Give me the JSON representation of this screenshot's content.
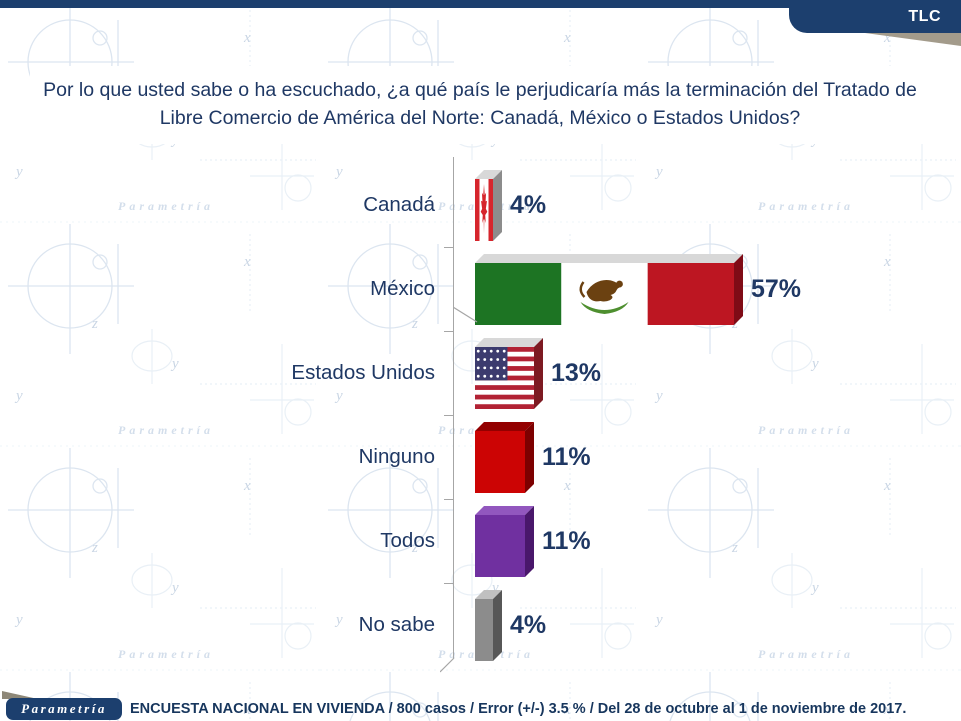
{
  "header": {
    "tab_label": "TLC"
  },
  "title": {
    "text": "Por lo que usted sabe o ha escuchado, ¿a qué país le perjudicaría más la terminación del Tratado de Libre Comercio de América del Norte: Canadá, México o Estados Unidos?"
  },
  "chart_data": {
    "type": "bar",
    "orientation": "horizontal",
    "title": "Por lo que usted sabe o ha escuchado, ¿a qué país le perjudicaría más la terminación del Tratado de Libre Comercio de América del Norte: Canadá, México o Estados Unidos?",
    "categories": [
      "Canadá",
      "México",
      "Estados Unidos",
      "Ninguno",
      "Todos",
      "No sabe"
    ],
    "values": [
      4,
      57,
      13,
      11,
      11,
      4
    ],
    "value_labels": [
      "4%",
      "57%",
      "13%",
      "11%",
      "11%",
      "4%"
    ],
    "bar_styles": [
      "canada-flag",
      "mexico-flag",
      "usa-flag",
      "solid-red",
      "solid-purple",
      "solid-gray"
    ],
    "xlim": [
      0,
      60
    ],
    "unit": "%",
    "legend": "none",
    "grid": "off",
    "style": "3d-horizontal-bars-with-flag-textures"
  },
  "footer": {
    "logo": "Parametría",
    "text": "ENCUESTA NACIONAL EN VIVIENDA / 800 casos / Error (+/-) 3.5 % / Del 28 de octubre al 1 de noviembre de 2017."
  },
  "watermark": {
    "text": "Parametría"
  },
  "colors": {
    "navy_band": "#1c3f6e",
    "navy_text": "#1f3864",
    "footer_navy": "#17365d",
    "fold_gray": "#a39b8b",
    "axis_gray": "#a6a6a6",
    "watermark_blue": "#b9c9dd",
    "watermark_blue_dark": "#9cb1cd",
    "canada_red": "#d6252c",
    "mexico_green": "#1d7423",
    "mexico_red": "#bd1622",
    "mexico_emblem_brown": "#6b4111",
    "mexico_emblem_green": "#4e8f2f",
    "usa_red": "#b22234",
    "usa_blue": "#3c3b6e",
    "flag_top_face": "#d8d8d8",
    "canada_side": "#8c8c8c",
    "mexico_side": "#7f0b16",
    "usa_side": "#7d1a22",
    "red_front": "#cc0404",
    "red_top": "#930000",
    "red_side": "#7d0000",
    "purple_front": "#7030a0",
    "purple_top": "#9257be",
    "purple_side": "#49176b",
    "gray_front": "#8c8c8c",
    "gray_top": "#c0c0c0",
    "gray_side": "#575757"
  }
}
